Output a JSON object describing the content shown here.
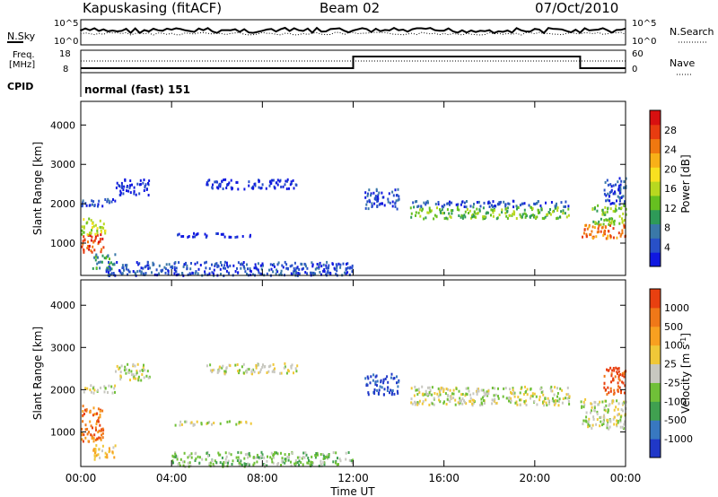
{
  "header": {
    "station": "Kapuskasing (fitACF)",
    "beam": "Beam 02",
    "date": "07/Oct/2010"
  },
  "noise_panel": {
    "left_label": "N.Sky",
    "right_label": "N.Search",
    "left_ticks": [
      "10^5",
      "10^0"
    ],
    "right_ticks": [
      "10^5",
      "10^0"
    ]
  },
  "freq_panel": {
    "left_label_line1": "Freq.",
    "left_label_line2": "[MHz]",
    "right_label": "Nave",
    "left_ticks": [
      "18",
      "8"
    ],
    "right_ticks": [
      "60",
      "0"
    ]
  },
  "cpid": {
    "label": "CPID",
    "text": "normal (fast) 151"
  },
  "chart_data": [
    {
      "type": "heatmap",
      "name": "power",
      "ylabel": "Slant Range [km]",
      "ylim": [
        180,
        4600
      ],
      "yticks": [
        1000,
        2000,
        3000,
        4000
      ],
      "xlim": [
        0,
        24
      ],
      "colorbar": {
        "label": "Power [dB]",
        "tick_labels": [
          "4",
          "8",
          "12",
          "16",
          "20",
          "24",
          "28"
        ],
        "colors": [
          "#1018e0",
          "#2850c8",
          "#3a78a8",
          "#2e9a58",
          "#66c020",
          "#b8d820",
          "#f8e020",
          "#f8b018",
          "#f07810",
          "#e83c10",
          "#d81010"
        ]
      },
      "regions": [
        {
          "t0": 0.0,
          "t1": 1.0,
          "r0": 800,
          "r1": 1250,
          "level": 9
        },
        {
          "t0": 0.0,
          "t1": 1.1,
          "r0": 1250,
          "r1": 1650,
          "level": 5
        },
        {
          "t0": 0.0,
          "t1": 1.5,
          "r0": 1950,
          "r1": 2150,
          "level": 1
        },
        {
          "t0": 0.5,
          "t1": 1.5,
          "r0": 350,
          "r1": 750,
          "level": 3
        },
        {
          "t0": 1.5,
          "t1": 3.0,
          "r0": 2250,
          "r1": 2650,
          "level": 0
        },
        {
          "t0": 5.5,
          "t1": 9.5,
          "r0": 2400,
          "r1": 2650,
          "level": 0
        },
        {
          "t0": 4.0,
          "t1": 7.5,
          "r0": 1180,
          "r1": 1280,
          "level": 0
        },
        {
          "t0": 12.5,
          "t1": 14.0,
          "r0": 1900,
          "r1": 2400,
          "level": 1
        },
        {
          "t0": 14.5,
          "t1": 21.5,
          "r0": 1650,
          "r1": 1950,
          "level": 4
        },
        {
          "t0": 14.5,
          "t1": 21.5,
          "r0": 1950,
          "r1": 2100,
          "level": 1
        },
        {
          "t0": 22.0,
          "t1": 24.0,
          "r0": 1150,
          "r1": 1500,
          "level": 8
        },
        {
          "t0": 22.5,
          "t1": 24.0,
          "r0": 1500,
          "r1": 2000,
          "level": 4
        },
        {
          "t0": 23.0,
          "t1": 24.0,
          "r0": 2000,
          "r1": 2700,
          "level": 1
        },
        {
          "t0": 1.0,
          "t1": 12.0,
          "r0": 200,
          "r1": 550,
          "level": 1
        }
      ]
    },
    {
      "type": "heatmap",
      "name": "velocity",
      "ylabel": "Slant Range [km]",
      "ylim": [
        180,
        4600
      ],
      "yticks": [
        1000,
        2000,
        3000,
        4000
      ],
      "xlim": [
        0,
        24
      ],
      "colorbar": {
        "label": "Velocity [m s^-1]",
        "tick_labels": [
          "1000",
          "500",
          "100",
          "25",
          "-25",
          "-100",
          "-500",
          "-1000"
        ],
        "colors": [
          "#2038c8",
          "#3878c0",
          "#40a050",
          "#70c038",
          "#c8c8c0",
          "#f0c838",
          "#f8a020",
          "#f07818",
          "#e84010"
        ]
      },
      "regions": [
        {
          "t0": 0.0,
          "t1": 1.0,
          "r0": 800,
          "r1": 1650,
          "level": 7
        },
        {
          "t0": 0.5,
          "t1": 1.5,
          "r0": 350,
          "r1": 750,
          "level": 5
        },
        {
          "t0": 0.0,
          "t1": 1.5,
          "r0": 1950,
          "r1": 2150,
          "level": 4
        },
        {
          "t0": 1.5,
          "t1": 3.0,
          "r0": 2250,
          "r1": 2650,
          "level": 4
        },
        {
          "t0": 5.5,
          "t1": 9.5,
          "r0": 2400,
          "r1": 2650,
          "level": 4
        },
        {
          "t0": 4.0,
          "t1": 7.5,
          "r0": 1180,
          "r1": 1280,
          "level": 4
        },
        {
          "t0": 12.5,
          "t1": 14.0,
          "r0": 1900,
          "r1": 2400,
          "level": 0
        },
        {
          "t0": 14.5,
          "t1": 21.5,
          "r0": 1650,
          "r1": 2100,
          "level": 4
        },
        {
          "t0": 22.0,
          "t1": 24.0,
          "r0": 1100,
          "r1": 1800,
          "level": 4
        },
        {
          "t0": 23.0,
          "t1": 24.0,
          "r0": 1900,
          "r1": 2600,
          "level": 8
        },
        {
          "t0": 4.0,
          "t1": 12.0,
          "r0": 200,
          "r1": 550,
          "level": 3
        }
      ]
    }
  ],
  "time_axis": {
    "label": "Time UT",
    "ticks": [
      "00:00",
      "04:00",
      "08:00",
      "12:00",
      "16:00",
      "20:00",
      "00:00"
    ]
  }
}
